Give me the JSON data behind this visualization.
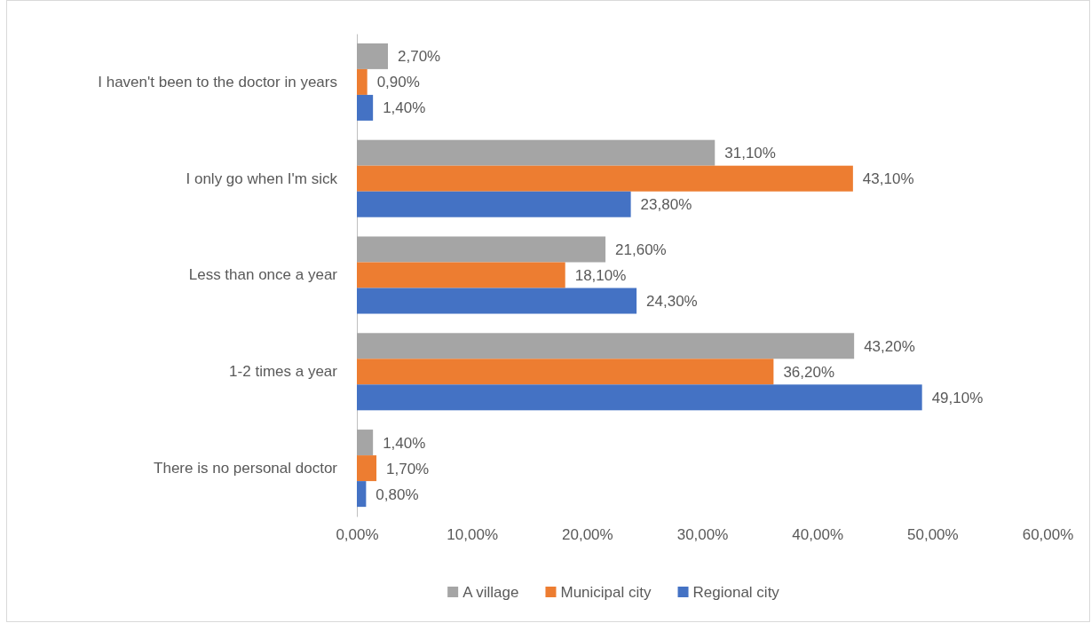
{
  "chart_data": {
    "type": "bar",
    "orientation": "horizontal",
    "categories": [
      "I haven't been to the doctor in years",
      "I only go when I'm sick",
      "Less than once a year",
      "1-2 times a year",
      "There is no personal doctor"
    ],
    "series": [
      {
        "name": "A village",
        "color": "#a5a5a5",
        "values": [
          2.7,
          31.1,
          21.6,
          43.2,
          1.4
        ],
        "value_labels": [
          "2,70%",
          "31,10%",
          "21,60%",
          "43,20%",
          "1,40%"
        ]
      },
      {
        "name": "Municipal city",
        "color": "#ed7d31",
        "values": [
          0.9,
          43.1,
          18.1,
          36.2,
          1.7
        ],
        "value_labels": [
          "0,90%",
          "43,10%",
          "18,10%",
          "36,20%",
          "1,70%"
        ]
      },
      {
        "name": "Regional city",
        "color": "#4472c4",
        "values": [
          1.4,
          23.8,
          24.3,
          49.1,
          0.8
        ],
        "value_labels": [
          "1,40%",
          "23,80%",
          "24,30%",
          "49,10%",
          "0,80%"
        ]
      }
    ],
    "xlim": [
      0,
      60
    ],
    "xticks": [
      {
        "value": 0,
        "label": "0,00%"
      },
      {
        "value": 10,
        "label": "10,00%"
      },
      {
        "value": 20,
        "label": "20,00%"
      },
      {
        "value": 30,
        "label": "30,00%"
      },
      {
        "value": 40,
        "label": "40,00%"
      },
      {
        "value": 50,
        "label": "50,00%"
      },
      {
        "value": 60,
        "label": "60,00%"
      }
    ],
    "grid": false,
    "legend": "bottom"
  }
}
